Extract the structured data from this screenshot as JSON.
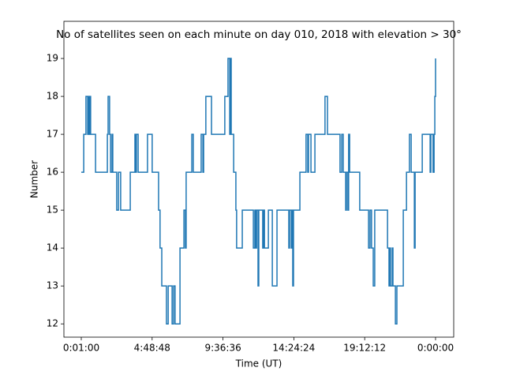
{
  "chart_data": {
    "type": "step",
    "title": "No of satellites seen on each minute on day 010, 2018 with elevation > 30°",
    "x_label": "Time (UT)",
    "y_label": "Number",
    "x": [
      1,
      11,
      20,
      27,
      30,
      33,
      36,
      39,
      59,
      107,
      110,
      116,
      120,
      126,
      129,
      145,
      152,
      161,
      200,
      219,
      222,
      225,
      232,
      270,
      289,
      315,
      321,
      328,
      347,
      354,
      370,
      376,
      382,
      402,
      418,
      424,
      427,
      450,
      456,
      488,
      495,
      498,
      507,
      530,
      584,
      597,
      604,
      607,
      610,
      620,
      629,
      632,
      655,
      700,
      706,
      709,
      713,
      719,
      722,
      738,
      741,
      745,
      761,
      777,
      796,
      844,
      847,
      854,
      857,
      860,
      863,
      889,
      914,
      921,
      924,
      934,
      950,
      991,
      1001,
      1052,
      1059,
      1065,
      1075,
      1078,
      1084,
      1087,
      1091,
      1132,
      1168,
      1174,
      1180,
      1187,
      1193,
      1245,
      1251,
      1254,
      1257,
      1264,
      1267,
      1277,
      1283,
      1309,
      1322,
      1334,
      1341,
      1354,
      1357,
      1386,
      1418,
      1421,
      1430,
      1434,
      1437,
      1440
    ],
    "series": [
      {
        "name": "Number",
        "color": "#1f77b4",
        "values": [
          16,
          17,
          18,
          17,
          18,
          17,
          18,
          17,
          16,
          17,
          18,
          17,
          16,
          17,
          16,
          15,
          16,
          15,
          16,
          17,
          16,
          17,
          16,
          17,
          16,
          15,
          14,
          13,
          12,
          13,
          12,
          13,
          12,
          14,
          15,
          14,
          16,
          17,
          16,
          17,
          16,
          17,
          18,
          17,
          18,
          19,
          17,
          19,
          17,
          16,
          15,
          14,
          15,
          14,
          15,
          14,
          15,
          13,
          15,
          14,
          15,
          14,
          15,
          13,
          15,
          14,
          15,
          14,
          15,
          13,
          15,
          16,
          17,
          16,
          17,
          16,
          17,
          18,
          17,
          16,
          17,
          16,
          15,
          16,
          15,
          17,
          16,
          15,
          14,
          15,
          14,
          13,
          15,
          14,
          13,
          14,
          13,
          14,
          13,
          12,
          13,
          15,
          16,
          17,
          16,
          14,
          16,
          17,
          16,
          17,
          16,
          17,
          18,
          19
        ]
      }
    ],
    "xlim": [
      -69.5,
      1513.8
    ],
    "ylim": [
      11.65,
      19.98
    ],
    "xticks": [
      {
        "value": 1,
        "label": "0:01:00"
      },
      {
        "value": 288.8,
        "label": "4:48:48"
      },
      {
        "value": 576.6,
        "label": "9:36:36"
      },
      {
        "value": 864.4,
        "label": "14:24:24"
      },
      {
        "value": 1152.2,
        "label": "19:12:12"
      },
      {
        "value": 1440,
        "label": "0:00:00"
      }
    ],
    "yticks": [
      12,
      13,
      14,
      15,
      16,
      17,
      18,
      19
    ],
    "grid": false
  }
}
